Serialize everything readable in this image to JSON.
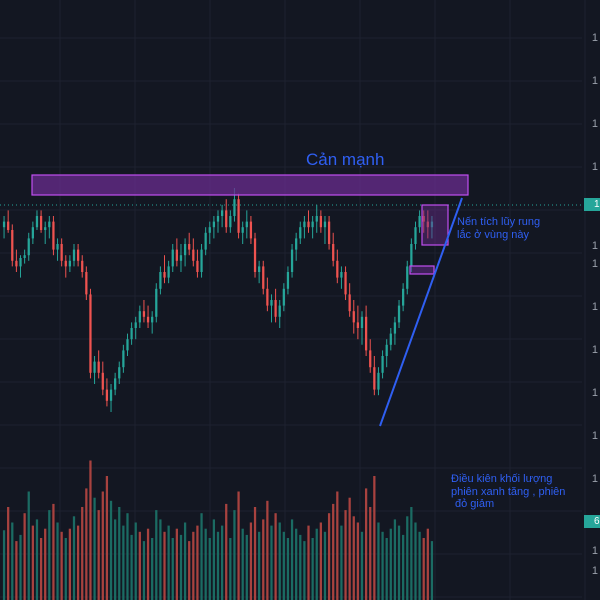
{
  "chart_data": {
    "type": "candlestick",
    "title": "",
    "xlabel": "",
    "ylabel": "",
    "ylim": [
      0,
      100
    ],
    "volume_ylim": [
      0,
      100
    ],
    "candles": [
      [
        76,
        80,
        72,
        78
      ],
      [
        78,
        82,
        74,
        75
      ],
      [
        75,
        77,
        62,
        64
      ],
      [
        64,
        68,
        60,
        62
      ],
      [
        62,
        66,
        58,
        65
      ],
      [
        65,
        68,
        63,
        66
      ],
      [
        66,
        74,
        64,
        72
      ],
      [
        72,
        78,
        70,
        76
      ],
      [
        76,
        82,
        75,
        80
      ],
      [
        80,
        82,
        74,
        75
      ],
      [
        75,
        78,
        70,
        76
      ],
      [
        76,
        80,
        72,
        78
      ],
      [
        78,
        80,
        66,
        68
      ],
      [
        68,
        72,
        64,
        70
      ],
      [
        70,
        72,
        62,
        64
      ],
      [
        64,
        66,
        58,
        62
      ],
      [
        62,
        66,
        60,
        64
      ],
      [
        64,
        70,
        62,
        68
      ],
      [
        68,
        70,
        62,
        64
      ],
      [
        64,
        66,
        58,
        60
      ],
      [
        60,
        62,
        50,
        52
      ],
      [
        52,
        54,
        22,
        24
      ],
      [
        24,
        30,
        20,
        28
      ],
      [
        28,
        32,
        22,
        24
      ],
      [
        24,
        28,
        16,
        18
      ],
      [
        18,
        22,
        12,
        14
      ],
      [
        14,
        20,
        10,
        18
      ],
      [
        18,
        24,
        16,
        22
      ],
      [
        22,
        28,
        20,
        26
      ],
      [
        26,
        34,
        24,
        32
      ],
      [
        32,
        38,
        30,
        36
      ],
      [
        36,
        42,
        34,
        40
      ],
      [
        40,
        44,
        36,
        42
      ],
      [
        42,
        48,
        40,
        46
      ],
      [
        46,
        50,
        42,
        44
      ],
      [
        44,
        48,
        40,
        42
      ],
      [
        42,
        46,
        38,
        44
      ],
      [
        44,
        56,
        42,
        54
      ],
      [
        54,
        62,
        52,
        60
      ],
      [
        60,
        66,
        56,
        58
      ],
      [
        58,
        64,
        56,
        62
      ],
      [
        62,
        70,
        60,
        68
      ],
      [
        68,
        72,
        62,
        64
      ],
      [
        64,
        70,
        60,
        66
      ],
      [
        66,
        72,
        62,
        70
      ],
      [
        70,
        74,
        66,
        68
      ],
      [
        68,
        72,
        62,
        64
      ],
      [
        64,
        68,
        58,
        60
      ],
      [
        60,
        70,
        58,
        68
      ],
      [
        68,
        76,
        66,
        74
      ],
      [
        74,
        78,
        70,
        76
      ],
      [
        76,
        80,
        72,
        78
      ],
      [
        78,
        82,
        74,
        80
      ],
      [
        80,
        84,
        76,
        82
      ],
      [
        82,
        86,
        74,
        76
      ],
      [
        76,
        82,
        74,
        80
      ],
      [
        80,
        90,
        78,
        86
      ],
      [
        86,
        88,
        72,
        74
      ],
      [
        74,
        78,
        70,
        76
      ],
      [
        76,
        82,
        72,
        78
      ],
      [
        78,
        80,
        70,
        72
      ],
      [
        72,
        74,
        58,
        60
      ],
      [
        60,
        64,
        56,
        62
      ],
      [
        62,
        64,
        52,
        54
      ],
      [
        54,
        58,
        46,
        48
      ],
      [
        48,
        52,
        42,
        50
      ],
      [
        50,
        54,
        42,
        44
      ],
      [
        44,
        50,
        40,
        48
      ],
      [
        48,
        56,
        46,
        54
      ],
      [
        54,
        62,
        52,
        60
      ],
      [
        60,
        70,
        58,
        68
      ],
      [
        68,
        74,
        64,
        72
      ],
      [
        72,
        78,
        70,
        76
      ],
      [
        76,
        80,
        72,
        78
      ],
      [
        78,
        82,
        74,
        76
      ],
      [
        76,
        80,
        72,
        78
      ],
      [
        78,
        84,
        74,
        80
      ],
      [
        80,
        82,
        74,
        76
      ],
      [
        76,
        80,
        70,
        78
      ],
      [
        78,
        80,
        68,
        70
      ],
      [
        70,
        74,
        62,
        64
      ],
      [
        64,
        68,
        56,
        58
      ],
      [
        58,
        62,
        54,
        60
      ],
      [
        60,
        62,
        50,
        52
      ],
      [
        52,
        56,
        44,
        46
      ],
      [
        46,
        50,
        38,
        42
      ],
      [
        42,
        48,
        36,
        40
      ],
      [
        40,
        46,
        34,
        44
      ],
      [
        44,
        48,
        30,
        32
      ],
      [
        32,
        36,
        24,
        26
      ],
      [
        26,
        30,
        16,
        18
      ],
      [
        18,
        26,
        16,
        24
      ],
      [
        24,
        32,
        22,
        30
      ],
      [
        30,
        36,
        26,
        34
      ],
      [
        34,
        40,
        32,
        38
      ],
      [
        38,
        44,
        34,
        42
      ],
      [
        42,
        50,
        40,
        48
      ],
      [
        48,
        56,
        46,
        54
      ],
      [
        54,
        64,
        52,
        62
      ],
      [
        62,
        72,
        60,
        70
      ],
      [
        70,
        78,
        68,
        76
      ],
      [
        76,
        82,
        74,
        80
      ],
      [
        80,
        82,
        74,
        78
      ],
      [
        78,
        82,
        72,
        76
      ],
      [
        76,
        80,
        72,
        78
      ]
    ],
    "volume": [
      [
        45,
        1
      ],
      [
        60,
        0
      ],
      [
        50,
        1
      ],
      [
        38,
        0
      ],
      [
        42,
        1
      ],
      [
        56,
        0
      ],
      [
        70,
        1
      ],
      [
        48,
        0
      ],
      [
        52,
        1
      ],
      [
        40,
        0
      ],
      [
        46,
        0
      ],
      [
        58,
        1
      ],
      [
        62,
        0
      ],
      [
        50,
        1
      ],
      [
        44,
        0
      ],
      [
        40,
        1
      ],
      [
        46,
        0
      ],
      [
        54,
        1
      ],
      [
        48,
        0
      ],
      [
        60,
        0
      ],
      [
        72,
        0
      ],
      [
        90,
        0
      ],
      [
        66,
        1
      ],
      [
        58,
        0
      ],
      [
        70,
        0
      ],
      [
        80,
        0
      ],
      [
        64,
        1
      ],
      [
        52,
        1
      ],
      [
        60,
        1
      ],
      [
        48,
        1
      ],
      [
        56,
        1
      ],
      [
        42,
        1
      ],
      [
        50,
        1
      ],
      [
        44,
        0
      ],
      [
        38,
        1
      ],
      [
        46,
        0
      ],
      [
        40,
        1
      ],
      [
        58,
        1
      ],
      [
        52,
        1
      ],
      [
        44,
        0
      ],
      [
        48,
        1
      ],
      [
        40,
        1
      ],
      [
        46,
        0
      ],
      [
        42,
        1
      ],
      [
        50,
        1
      ],
      [
        38,
        0
      ],
      [
        44,
        0
      ],
      [
        48,
        0
      ],
      [
        56,
        1
      ],
      [
        46,
        1
      ],
      [
        40,
        1
      ],
      [
        52,
        1
      ],
      [
        44,
        1
      ],
      [
        48,
        1
      ],
      [
        62,
        0
      ],
      [
        40,
        1
      ],
      [
        58,
        1
      ],
      [
        70,
        0
      ],
      [
        46,
        1
      ],
      [
        42,
        1
      ],
      [
        50,
        0
      ],
      [
        60,
        0
      ],
      [
        44,
        1
      ],
      [
        52,
        0
      ],
      [
        64,
        0
      ],
      [
        48,
        1
      ],
      [
        56,
        0
      ],
      [
        50,
        1
      ],
      [
        44,
        1
      ],
      [
        40,
        1
      ],
      [
        52,
        1
      ],
      [
        46,
        1
      ],
      [
        42,
        1
      ],
      [
        38,
        1
      ],
      [
        48,
        0
      ],
      [
        40,
        1
      ],
      [
        46,
        1
      ],
      [
        50,
        0
      ],
      [
        44,
        1
      ],
      [
        56,
        0
      ],
      [
        62,
        0
      ],
      [
        70,
        0
      ],
      [
        48,
        1
      ],
      [
        58,
        0
      ],
      [
        66,
        0
      ],
      [
        54,
        0
      ],
      [
        50,
        0
      ],
      [
        44,
        1
      ],
      [
        72,
        0
      ],
      [
        60,
        0
      ],
      [
        80,
        0
      ],
      [
        50,
        1
      ],
      [
        44,
        1
      ],
      [
        40,
        1
      ],
      [
        46,
        1
      ],
      [
        52,
        1
      ],
      [
        48,
        1
      ],
      [
        42,
        1
      ],
      [
        54,
        1
      ],
      [
        60,
        1
      ],
      [
        50,
        1
      ],
      [
        44,
        1
      ],
      [
        40,
        0
      ],
      [
        46,
        0
      ],
      [
        38,
        1
      ]
    ],
    "annotations": {
      "resistance_zone": {
        "label": "Cản mạnh",
        "y_low": 88,
        "y_high": 94
      },
      "accumulation_note": {
        "lines": [
          "Nến tích lũy rung",
          "lắc ở vùng này"
        ]
      },
      "volume_note": {
        "lines": [
          "Điều kiên khối lượng",
          "phiên xanh tăng , phiên",
          "đỏ giảm"
        ]
      }
    },
    "price_axis_ticks": [
      "1",
      "1",
      "1",
      "1",
      "1",
      "1",
      "1",
      "1",
      "1",
      "1",
      "1",
      "1",
      "1",
      "1"
    ],
    "last_price_label": "1",
    "last_volume_label": "6",
    "colors": {
      "up": "#26a69a",
      "down": "#ef5350",
      "up_volume": "#1b6b63",
      "down_volume": "#a8423f",
      "zone": "#6a2c8f",
      "zone_border": "#c04ef0",
      "trend": "#2f5ff2",
      "grid": "#1e2230",
      "tag": "#26a69a"
    }
  }
}
